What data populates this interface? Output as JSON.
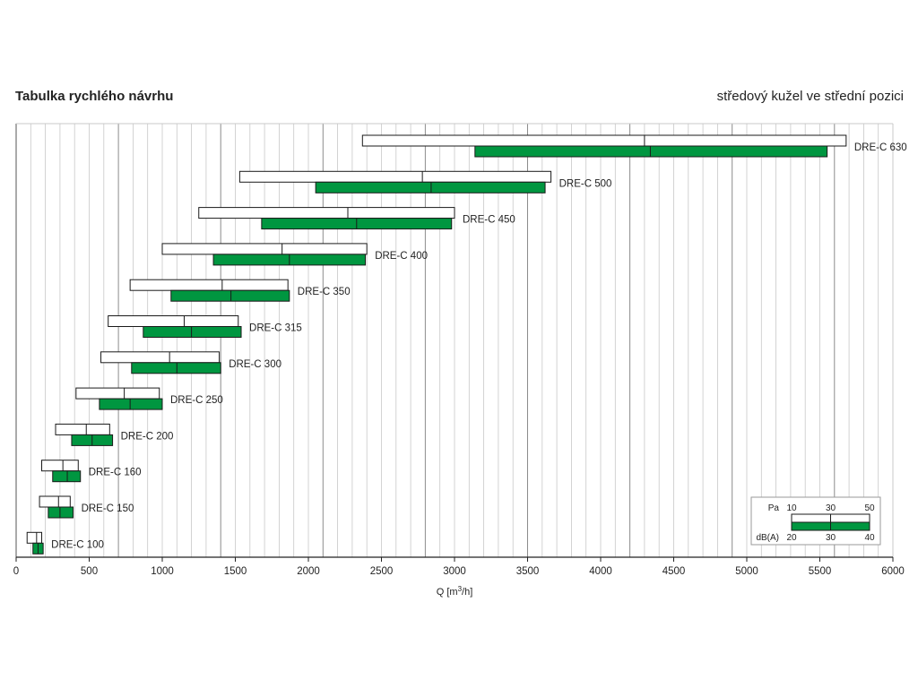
{
  "header": {
    "title": "Tabulka rychlého návrhu",
    "subtitle": "středový kužel ve střední pozici"
  },
  "colors": {
    "db_bar": "#009640",
    "pa_bar": "#ffffff",
    "bar_stroke": "#1a1a1a",
    "grid_minor": "#c8c8c8",
    "grid_major": "#8c8c8c"
  },
  "chart_data": {
    "type": "bar",
    "orientation": "horizontal-range",
    "xlabel_prefix": "Q [m",
    "xlabel_sup": "3",
    "xlabel_suffix": "/h]",
    "xlim": [
      0,
      6000
    ],
    "xticks": [
      0,
      500,
      1000,
      1500,
      2000,
      2500,
      3000,
      3500,
      4000,
      4500,
      5000,
      5500,
      6000
    ],
    "grid": true,
    "series": [
      {
        "name": "Pa",
        "values": [
          {
            "label": "DRE-C 630",
            "start": 2370,
            "mid": 4300,
            "end": 5680
          },
          {
            "label": "DRE-C 500",
            "start": 1530,
            "mid": 2780,
            "end": 3660
          },
          {
            "label": "DRE-C 450",
            "start": 1250,
            "mid": 2270,
            "end": 3000
          },
          {
            "label": "DRE-C 400",
            "start": 1000,
            "mid": 1820,
            "end": 2400
          },
          {
            "label": "DRE-C 350",
            "start": 780,
            "mid": 1410,
            "end": 1860
          },
          {
            "label": "DRE-C 315",
            "start": 630,
            "mid": 1150,
            "end": 1520
          },
          {
            "label": "DRE-C 300",
            "start": 580,
            "mid": 1050,
            "end": 1390
          },
          {
            "label": "DRE-C 250",
            "start": 410,
            "mid": 740,
            "end": 980
          },
          {
            "label": "DRE-C 200",
            "start": 270,
            "mid": 480,
            "end": 640
          },
          {
            "label": "DRE-C 160",
            "start": 175,
            "mid": 320,
            "end": 425
          },
          {
            "label": "DRE-C 150",
            "start": 160,
            "mid": 290,
            "end": 370
          },
          {
            "label": "DRE-C 100",
            "start": 75,
            "mid": 140,
            "end": 175
          }
        ]
      },
      {
        "name": "dB(A)",
        "values": [
          {
            "label": "DRE-C 630",
            "start": 3140,
            "mid": 4340,
            "end": 5550
          },
          {
            "label": "DRE-C 500",
            "start": 2050,
            "mid": 2840,
            "end": 3620
          },
          {
            "label": "DRE-C 450",
            "start": 1680,
            "mid": 2330,
            "end": 2980
          },
          {
            "label": "DRE-C 400",
            "start": 1350,
            "mid": 1870,
            "end": 2390
          },
          {
            "label": "DRE-C 350",
            "start": 1060,
            "mid": 1470,
            "end": 1870
          },
          {
            "label": "DRE-C 315",
            "start": 870,
            "mid": 1200,
            "end": 1540
          },
          {
            "label": "DRE-C 300",
            "start": 790,
            "mid": 1100,
            "end": 1400
          },
          {
            "label": "DRE-C 250",
            "start": 570,
            "mid": 780,
            "end": 1000
          },
          {
            "label": "DRE-C 200",
            "start": 380,
            "mid": 520,
            "end": 660
          },
          {
            "label": "DRE-C 160",
            "start": 250,
            "mid": 350,
            "end": 440
          },
          {
            "label": "DRE-C 150",
            "start": 220,
            "mid": 300,
            "end": 390
          },
          {
            "label": "DRE-C 100",
            "start": 115,
            "mid": 150,
            "end": 185
          }
        ]
      }
    ],
    "legend": {
      "position": "bottom-right",
      "pa_label": "Pa",
      "pa_ticks": [
        "10",
        "30",
        "50"
      ],
      "db_label": "dB(A)",
      "db_ticks": [
        "20",
        "30",
        "40"
      ]
    }
  }
}
